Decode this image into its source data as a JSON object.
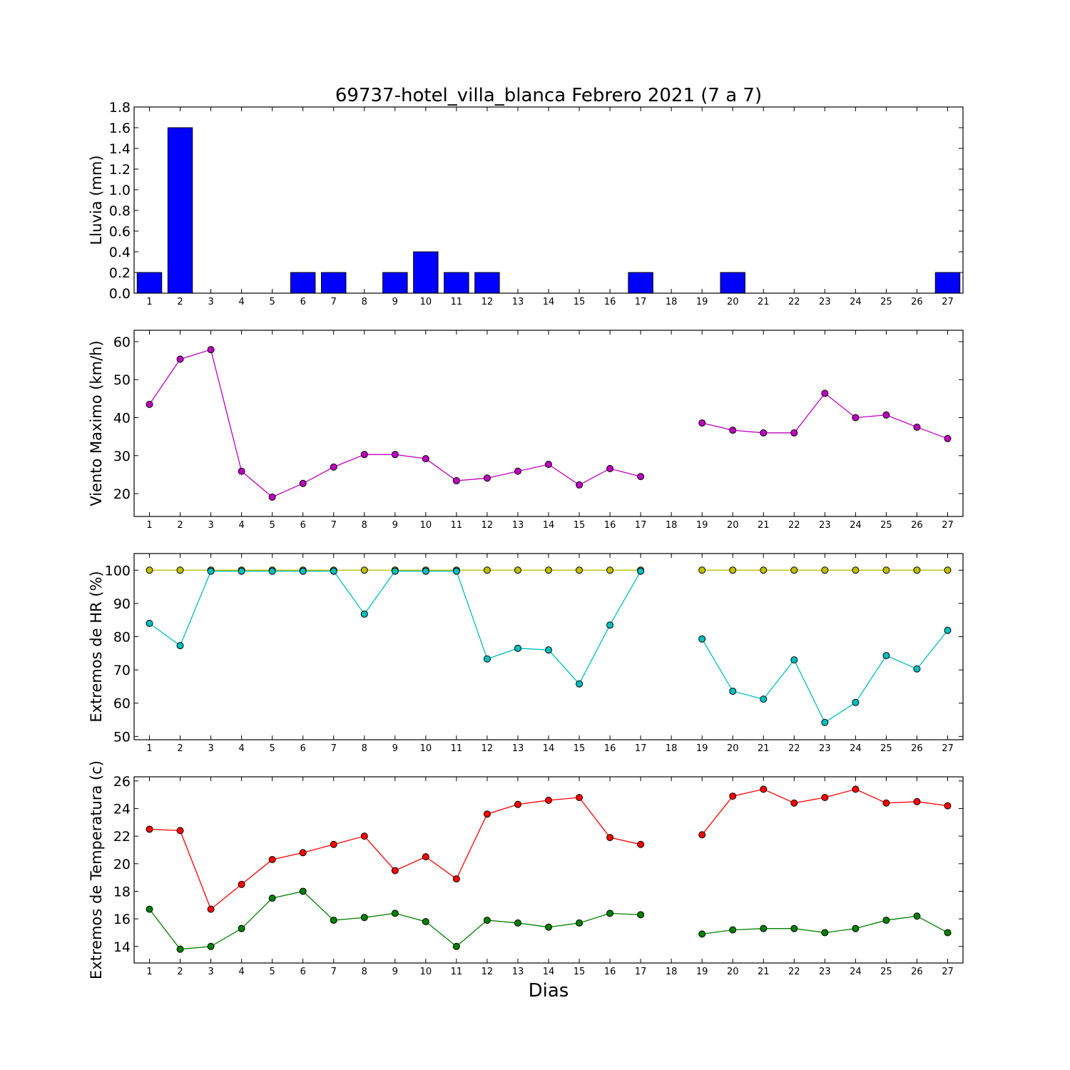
{
  "title": "69737-hotel_villa_blanca Febrero 2021  (7 a 7)",
  "xlabel": "Dias",
  "colors": {
    "rain": "#0000ff",
    "wind": "#bf00bf",
    "hr_max": "#bfbf00",
    "hr_min": "#00bfbf",
    "temp_max": "#ff0000",
    "temp_min": "#008000"
  },
  "chart_data": [
    {
      "type": "bar",
      "ylabel": "Lluvia (mm)",
      "ylim": [
        0,
        1.8
      ],
      "yticks": [
        "0.0",
        "0.2",
        "0.4",
        "0.6",
        "0.8",
        "1.0",
        "1.2",
        "1.4",
        "1.6",
        "1.8"
      ],
      "categories": [
        "1",
        "2",
        "3",
        "4",
        "5",
        "6",
        "7",
        "8",
        "9",
        "10",
        "11",
        "12",
        "13",
        "14",
        "15",
        "16",
        "17",
        "18",
        "19",
        "20",
        "21",
        "22",
        "23",
        "24",
        "25",
        "26",
        "27"
      ],
      "values": [
        0.2,
        1.6,
        0,
        0,
        0,
        0.2,
        0.2,
        0,
        0.2,
        0.4,
        0.2,
        0.2,
        0,
        0,
        0,
        0,
        0.2,
        0,
        0,
        0.2,
        0,
        0,
        0,
        0,
        0,
        0,
        0.2
      ]
    },
    {
      "type": "line",
      "ylabel": "Viento Maximo (km/h)",
      "ylim": [
        14,
        63
      ],
      "yticks": [
        "20",
        "30",
        "40",
        "50",
        "60"
      ],
      "categories": [
        "1",
        "2",
        "3",
        "4",
        "5",
        "6",
        "7",
        "8",
        "9",
        "10",
        "11",
        "12",
        "13",
        "14",
        "15",
        "16",
        "17",
        "18",
        "19",
        "20",
        "21",
        "22",
        "23",
        "24",
        "25",
        "26",
        "27"
      ],
      "series": [
        {
          "color_key": "wind",
          "values": [
            43.5,
            55.4,
            57.9,
            25.9,
            19.1,
            22.7,
            27.0,
            30.3,
            30.3,
            29.2,
            23.4,
            24.1,
            25.9,
            27.7,
            22.3,
            26.6,
            24.5,
            null,
            38.6,
            36.7,
            36.0,
            36.0,
            46.4,
            40.0,
            40.7,
            37.5,
            34.5
          ]
        }
      ]
    },
    {
      "type": "line",
      "ylabel": "Extremos de HR (%)",
      "ylim": [
        49,
        105
      ],
      "yticks": [
        "50",
        "60",
        "70",
        "80",
        "90",
        "100"
      ],
      "categories": [
        "1",
        "2",
        "3",
        "4",
        "5",
        "6",
        "7",
        "8",
        "9",
        "10",
        "11",
        "12",
        "13",
        "14",
        "15",
        "16",
        "17",
        "18",
        "19",
        "20",
        "21",
        "22",
        "23",
        "24",
        "25",
        "26",
        "27"
      ],
      "series": [
        {
          "color_key": "hr_max",
          "values": [
            100,
            100,
            100,
            100,
            100,
            100,
            100,
            100,
            100,
            100,
            100,
            100,
            100,
            100,
            100,
            100,
            100,
            null,
            100,
            100,
            100,
            100,
            100,
            100,
            100,
            100,
            100
          ]
        },
        {
          "color_key": "hr_min",
          "values": [
            84,
            77.3,
            99.7,
            99.7,
            99.7,
            99.7,
            99.7,
            86.8,
            99.7,
            99.7,
            99.7,
            73.3,
            76.5,
            76.0,
            65.8,
            83.5,
            99.7,
            null,
            79.3,
            63.6,
            61.2,
            73.0,
            54.2,
            60.2,
            74.3,
            70.3,
            81.9
          ]
        }
      ]
    },
    {
      "type": "line",
      "ylabel": "Extremos de Temperatura (c)",
      "ylim": [
        12.8,
        26.3
      ],
      "yticks": [
        "14",
        "16",
        "18",
        "20",
        "22",
        "24",
        "26"
      ],
      "categories": [
        "1",
        "2",
        "3",
        "4",
        "5",
        "6",
        "7",
        "8",
        "9",
        "10",
        "11",
        "12",
        "13",
        "14",
        "15",
        "16",
        "17",
        "18",
        "19",
        "20",
        "21",
        "22",
        "23",
        "24",
        "25",
        "26",
        "27"
      ],
      "series": [
        {
          "color_key": "temp_max",
          "values": [
            22.5,
            22.4,
            16.7,
            18.5,
            20.3,
            20.8,
            21.4,
            22.0,
            19.5,
            20.5,
            18.9,
            23.6,
            24.3,
            24.6,
            24.8,
            21.9,
            21.4,
            null,
            22.1,
            24.9,
            25.4,
            24.4,
            24.8,
            25.4,
            24.4,
            24.5,
            24.2
          ]
        },
        {
          "color_key": "temp_min",
          "values": [
            16.7,
            13.8,
            14.0,
            15.3,
            17.5,
            18.0,
            15.9,
            16.1,
            16.4,
            15.8,
            14.0,
            15.9,
            15.7,
            15.4,
            15.7,
            16.4,
            16.3,
            null,
            14.9,
            15.2,
            15.3,
            15.3,
            15.0,
            15.3,
            15.9,
            16.2,
            15.0
          ]
        }
      ]
    }
  ]
}
